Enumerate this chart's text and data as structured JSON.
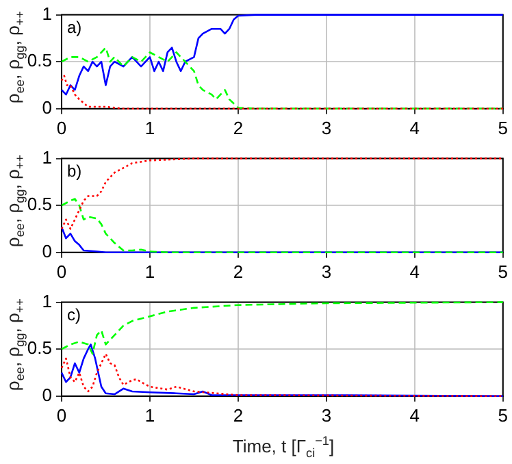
{
  "chart_data": [
    {
      "type": "line",
      "ylabel": "ρ$_{ee}$, ρ$_{gg}$, ρ$_{++}$",
      "annotations": [
        "a)"
      ],
      "xlim": [
        0,
        5
      ],
      "xticks": [
        0,
        1,
        2,
        3,
        4,
        5
      ],
      "ylim": [
        0,
        1
      ],
      "yticks": [
        0,
        0.5,
        1
      ],
      "grid": true,
      "legend": false,
      "marker": "none",
      "series": [
        {
          "color": "#ff0000",
          "line_style": "dotted",
          "x": [
            0,
            0.03,
            0.06,
            0.1,
            0.15,
            0.2,
            0.3,
            0.5,
            0.7,
            5
          ],
          "values": [
            0.3,
            0.35,
            0.25,
            0.25,
            0.15,
            0.1,
            0.02,
            0.02,
            0,
            0
          ]
        },
        {
          "color": "#00ff00",
          "line_style": "dashed",
          "x": [
            0,
            0.1,
            0.2,
            0.3,
            0.4,
            0.5,
            0.55,
            0.6,
            0.7,
            0.8,
            0.9,
            1.0,
            1.1,
            1.2,
            1.25,
            1.3,
            1.4,
            1.5,
            1.55,
            1.6,
            1.7,
            1.75,
            1.8,
            1.85,
            1.9,
            2.0,
            2.2,
            5
          ],
          "values": [
            0.5,
            0.55,
            0.55,
            0.5,
            0.55,
            0.65,
            0.5,
            0.55,
            0.45,
            0.55,
            0.5,
            0.6,
            0.55,
            0.5,
            0.55,
            0.6,
            0.5,
            0.4,
            0.25,
            0.2,
            0.15,
            0.1,
            0.15,
            0.2,
            0.1,
            0.01,
            0,
            0
          ]
        },
        {
          "color": "#0000ff",
          "line_style": "solid",
          "x": [
            0,
            0.05,
            0.1,
            0.15,
            0.2,
            0.25,
            0.3,
            0.35,
            0.4,
            0.45,
            0.5,
            0.55,
            0.6,
            0.7,
            0.8,
            0.9,
            1.0,
            1.05,
            1.1,
            1.15,
            1.2,
            1.25,
            1.3,
            1.35,
            1.4,
            1.5,
            1.55,
            1.6,
            1.7,
            1.8,
            1.85,
            1.9,
            1.95,
            2.0,
            2.2,
            5
          ],
          "values": [
            0.2,
            0.15,
            0.25,
            0.2,
            0.35,
            0.45,
            0.4,
            0.5,
            0.45,
            0.5,
            0.25,
            0.45,
            0.5,
            0.45,
            0.55,
            0.45,
            0.55,
            0.4,
            0.5,
            0.4,
            0.6,
            0.65,
            0.5,
            0.4,
            0.5,
            0.55,
            0.75,
            0.8,
            0.85,
            0.85,
            0.8,
            0.85,
            0.95,
            0.99,
            1,
            1
          ]
        }
      ]
    },
    {
      "type": "line",
      "ylabel": "ρ$_{ee}$, ρ$_{gg}$, ρ$_{++}$",
      "annotations": [
        "b)"
      ],
      "xlim": [
        0,
        5
      ],
      "xticks": [
        0,
        1,
        2,
        3,
        4,
        5
      ],
      "ylim": [
        0,
        1
      ],
      "yticks": [
        0,
        0.5,
        1
      ],
      "grid": true,
      "legend": false,
      "marker": "none",
      "series": [
        {
          "color": "#ff0000",
          "line_style": "dotted",
          "x": [
            0,
            0.05,
            0.1,
            0.15,
            0.2,
            0.25,
            0.3,
            0.4,
            0.45,
            0.5,
            0.6,
            0.7,
            0.8,
            1.0,
            1.5,
            5
          ],
          "values": [
            0.25,
            0.35,
            0.25,
            0.35,
            0.45,
            0.55,
            0.6,
            0.6,
            0.65,
            0.75,
            0.85,
            0.9,
            0.95,
            0.98,
            1,
            1
          ]
        },
        {
          "color": "#00ff00",
          "line_style": "dashed",
          "x": [
            0,
            0.1,
            0.15,
            0.2,
            0.25,
            0.3,
            0.4,
            0.45,
            0.5,
            0.6,
            0.7,
            0.8,
            0.9,
            1.0,
            1.2,
            5
          ],
          "values": [
            0.5,
            0.55,
            0.57,
            0.5,
            0.35,
            0.38,
            0.36,
            0.3,
            0.2,
            0.1,
            0.02,
            0.02,
            0.03,
            0.01,
            0,
            0
          ]
        },
        {
          "color": "#0000ff",
          "line_style": "solid",
          "x": [
            0,
            0.05,
            0.1,
            0.15,
            0.2,
            0.25,
            0.4,
            0.5,
            5
          ],
          "values": [
            0.27,
            0.15,
            0.2,
            0.12,
            0.08,
            0.02,
            0.01,
            0,
            0
          ]
        }
      ]
    },
    {
      "type": "line",
      "xlabel": "Time, t [Γ$_{ci}$$^{−1}$]",
      "ylabel": "ρ$_{ee}$, ρ$_{gg}$, ρ$_{++}$",
      "annotations": [
        "c)"
      ],
      "xlim": [
        0,
        5
      ],
      "xticks": [
        0,
        1,
        2,
        3,
        4,
        5
      ],
      "ylim": [
        0,
        1
      ],
      "yticks": [
        0,
        0.5,
        1
      ],
      "grid": true,
      "legend": false,
      "marker": "none",
      "series": [
        {
          "color": "#00ff00",
          "line_style": "dashed",
          "x": [
            0,
            0.1,
            0.2,
            0.3,
            0.35,
            0.4,
            0.45,
            0.5,
            0.6,
            0.7,
            0.8,
            1.0,
            1.2,
            1.5,
            2.0,
            3.0,
            5
          ],
          "values": [
            0.5,
            0.55,
            0.58,
            0.55,
            0.45,
            0.65,
            0.7,
            0.55,
            0.65,
            0.75,
            0.8,
            0.85,
            0.9,
            0.94,
            0.97,
            0.99,
            1
          ]
        },
        {
          "color": "#ff0000",
          "line_style": "dotted",
          "x": [
            0,
            0.05,
            0.1,
            0.15,
            0.2,
            0.25,
            0.3,
            0.35,
            0.4,
            0.5,
            0.55,
            0.6,
            0.65,
            0.7,
            0.8,
            0.85,
            0.9,
            1.0,
            1.2,
            1.3,
            1.5,
            2.0,
            5
          ],
          "values": [
            0.3,
            0.4,
            0.2,
            0.15,
            0.25,
            0.1,
            0.05,
            0.1,
            0.25,
            0.45,
            0.35,
            0.33,
            0.2,
            0.12,
            0.17,
            0.18,
            0.15,
            0.1,
            0.07,
            0.1,
            0.05,
            0.01,
            0
          ]
        },
        {
          "color": "#0000ff",
          "line_style": "solid",
          "x": [
            0,
            0.05,
            0.1,
            0.15,
            0.2,
            0.25,
            0.3,
            0.33,
            0.38,
            0.45,
            0.5,
            0.6,
            0.7,
            0.8,
            1.0,
            1.3,
            1.5,
            1.6,
            1.7,
            2.0,
            3.0,
            5
          ],
          "values": [
            0.25,
            0.15,
            0.2,
            0.35,
            0.25,
            0.4,
            0.5,
            0.55,
            0.4,
            0.1,
            0.03,
            0.02,
            0.08,
            0.05,
            0.04,
            0.03,
            0.02,
            0.05,
            0.01,
            0.01,
            0.01,
            0
          ]
        }
      ]
    }
  ]
}
